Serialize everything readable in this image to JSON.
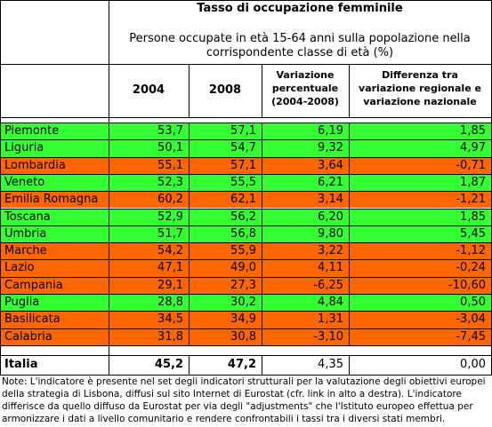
{
  "title": "Tasso di occupazione femminile",
  "subtitle": [
    "Persone occupate in età 15-64 anni sulla popolazione nella",
    "corrispondente classe di età (%)"
  ],
  "headers": [
    [
      "2004"
    ],
    [
      "2008"
    ],
    [
      "Variazione",
      "percentuale",
      "(2004-2008)"
    ],
    [
      "Differenza tra",
      "variazione regionale e",
      "variazione nazionale"
    ]
  ],
  "rows": [
    {
      "region": "Piemonte",
      "cells": [
        "53,7",
        "57,1",
        "6,19",
        "1,85"
      ],
      "color": "#33ff33"
    },
    {
      "region": "Liguria",
      "cells": [
        "50,1",
        "54,7",
        "9,32",
        "4,97"
      ],
      "color": "#33ff33"
    },
    {
      "region": "Lombardia",
      "cells": [
        "55,1",
        "57,1",
        "3,64",
        "-0,71"
      ],
      "color": "#ff6600"
    },
    {
      "region": "Veneto",
      "cells": [
        "52,3",
        "55,5",
        "6,21",
        "1,87"
      ],
      "color": "#33ff33"
    },
    {
      "region": "Emilia Romagna",
      "cells": [
        "60,2",
        "62,1",
        "3,14",
        "-1,21"
      ],
      "color": "#ff6600"
    },
    {
      "region": "Toscana",
      "cells": [
        "52,9",
        "56,2",
        "6,20",
        "1,85"
      ],
      "color": "#33ff33"
    },
    {
      "region": "Umbria",
      "cells": [
        "51,7",
        "56,8",
        "9,80",
        "5,45"
      ],
      "color": "#33ff33"
    },
    {
      "region": "Marche",
      "cells": [
        "54,2",
        "55,9",
        "3,22",
        "-1,12"
      ],
      "color": "#ff6600"
    },
    {
      "region": "Lazio",
      "cells": [
        "47,1",
        "49,0",
        "4,11",
        "-0,24"
      ],
      "color": "#ff6600"
    },
    {
      "region": "Campania",
      "cells": [
        "29,1",
        "27,3",
        "-6,25",
        "-10,60"
      ],
      "color": "#ff6600"
    },
    {
      "region": "Puglia",
      "cells": [
        "28,8",
        "30,2",
        "4,84",
        "0,50"
      ],
      "color": "#33ff33"
    },
    {
      "region": "Basilicata",
      "cells": [
        "34,5",
        "34,9",
        "1,31",
        "-3,04"
      ],
      "color": "#ff6600"
    },
    {
      "region": "Calabria",
      "cells": [
        "31,8",
        "30,8",
        "-3,10",
        "-7,45"
      ],
      "color": "#ff6600"
    }
  ],
  "total": {
    "region": "Italia",
    "cells": [
      "45,2",
      "47,2",
      "4,35",
      "0,00"
    ]
  },
  "note": [
    "Note: L'indicatore è presente nel set degli indicatori strutturali per la valutazione degli obiettivi europei",
    "della strategia di Lisbona, diffusi sul sito Internet di Eurostat (cfr. link in alto a destra). L'indicatore",
    "differisce da quello diffuso da Eurostat per via degli \"adjustments\" che l'Istituto europeo effettua per",
    "armonizzare i dati a livello comunitario e rendere confrontabili i tassi tra i diversi stati membri."
  ]
}
